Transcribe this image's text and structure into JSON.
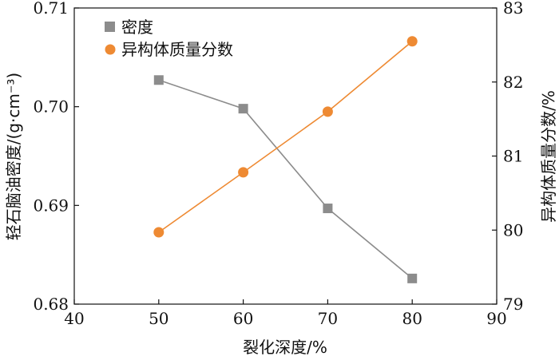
{
  "chart_data": {
    "type": "line",
    "title": "",
    "xlabel": "裂化深度/%",
    "ylabel_left": "轻石脑油密度/(g·cm⁻³)",
    "ylabel_right": "异构体质量分数/%",
    "xlim": [
      40,
      90
    ],
    "xticks": [
      "40",
      "50",
      "60",
      "70",
      "80",
      "90"
    ],
    "ylim_left": [
      0.68,
      0.71
    ],
    "yticks_left": [
      "0.68",
      "0.69",
      "0.70",
      "0.71"
    ],
    "ylim_right": [
      79,
      83
    ],
    "yticks_right": [
      "79",
      "80",
      "81",
      "82",
      "83"
    ],
    "grid": false,
    "legend_position": "top-left",
    "x": [
      50,
      60,
      70,
      80
    ],
    "series": [
      {
        "name": "密度",
        "axis": "left",
        "marker": "square",
        "color": "#8c8c8c",
        "values": [
          0.7027,
          0.6998,
          0.6897,
          0.6826
        ]
      },
      {
        "name": "异构体质量分数",
        "axis": "right",
        "marker": "circle",
        "color": "#ee8a33",
        "values": [
          79.97,
          80.78,
          81.6,
          82.55
        ]
      }
    ]
  }
}
